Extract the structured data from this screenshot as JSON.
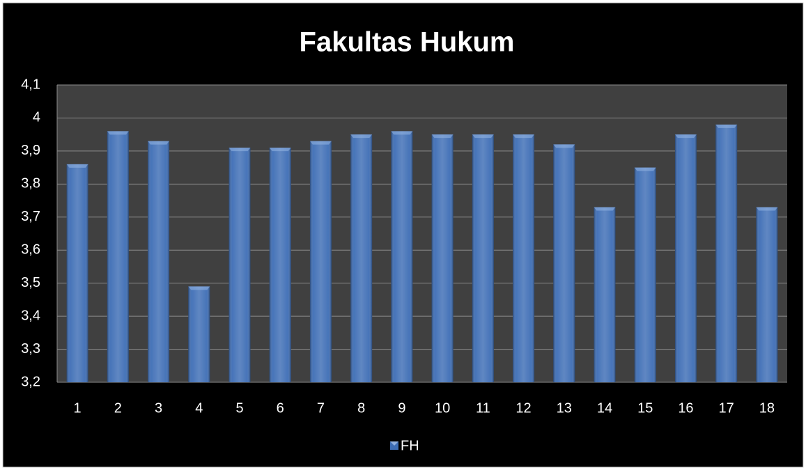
{
  "chart_data": {
    "type": "bar",
    "title": "Fakultas Hukum",
    "categories": [
      "1",
      "2",
      "3",
      "4",
      "5",
      "6",
      "7",
      "8",
      "9",
      "10",
      "11",
      "12",
      "13",
      "14",
      "15",
      "16",
      "17",
      "18"
    ],
    "series": [
      {
        "name": "FH",
        "color": "#3d6db5",
        "values": [
          3.86,
          3.96,
          3.93,
          3.49,
          3.91,
          3.91,
          3.93,
          3.95,
          3.96,
          3.95,
          3.95,
          3.95,
          3.92,
          3.73,
          3.85,
          3.95,
          3.98,
          3.73
        ]
      }
    ],
    "ylim": [
      3.2,
      4.1
    ],
    "yticks": [
      {
        "value": 3.2,
        "label": "3,2"
      },
      {
        "value": 3.3,
        "label": "3,3"
      },
      {
        "value": 3.4,
        "label": "3,4"
      },
      {
        "value": 3.5,
        "label": "3,5"
      },
      {
        "value": 3.6,
        "label": "3,6"
      },
      {
        "value": 3.7,
        "label": "3,7"
      },
      {
        "value": 3.8,
        "label": "3,8"
      },
      {
        "value": 3.9,
        "label": "3,9"
      },
      4,
      {
        "value": 4.1,
        "label": "4,1"
      }
    ],
    "grid": true,
    "legend": "bottom"
  }
}
